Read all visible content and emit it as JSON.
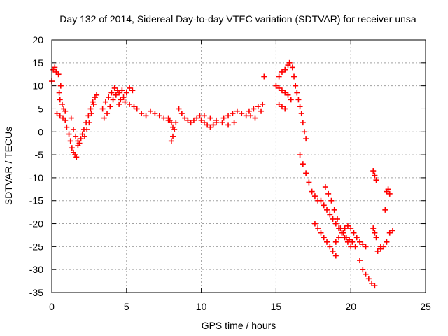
{
  "chart_data": {
    "type": "scatter",
    "title": "Day 132 of 2014, Sidereal Day-to-day VTEC variation (SDTVAR) for receiver unsa",
    "xlabel": "GPS time / hours",
    "ylabel": "SDTVAR / TECUs",
    "xlim": [
      0,
      25
    ],
    "ylim": [
      -35,
      20
    ],
    "xticks": [
      0,
      5,
      10,
      15,
      20,
      25
    ],
    "yticks": [
      -35,
      -30,
      -25,
      -20,
      -15,
      -10,
      -5,
      0,
      5,
      10,
      15,
      20
    ],
    "grid": true,
    "marker": "+",
    "series_color": "#ff0000",
    "series": [
      {
        "name": "SDTVAR",
        "x": [
          0.0,
          0.1,
          0.2,
          0.3,
          0.45,
          0.6,
          0.5,
          0.55,
          0.7,
          0.8,
          0.9,
          0.35,
          0.55,
          0.75,
          0.9,
          1.0,
          1.15,
          1.25,
          1.35,
          1.45,
          1.55,
          1.65,
          1.75,
          1.85,
          1.3,
          1.45,
          1.6,
          1.75,
          1.85,
          1.95,
          2.05,
          2.15,
          2.3,
          2.45,
          2.6,
          2.75,
          2.9,
          3.0,
          2.2,
          2.35,
          2.5,
          2.65,
          2.8,
          3.4,
          3.6,
          3.8,
          4.0,
          4.2,
          4.4,
          3.5,
          3.7,
          3.9,
          4.1,
          4.3,
          4.5,
          4.7,
          4.5,
          4.8,
          5.0,
          5.2,
          5.4,
          4.6,
          4.9,
          5.2,
          5.5,
          5.7,
          6.0,
          6.3,
          6.6,
          6.9,
          7.2,
          7.5,
          7.8,
          8.0,
          8.1,
          8.2,
          8.3,
          7.8,
          7.9,
          8.0,
          8.1,
          8.5,
          8.7,
          8.9,
          9.1,
          9.3,
          9.5,
          9.7,
          9.9,
          10.0,
          10.2,
          10.4,
          10.6,
          10.8,
          11.0,
          10.2,
          10.6,
          11.0,
          11.4,
          11.8,
          12.2,
          11.5,
          11.8,
          12.1,
          12.4,
          12.7,
          13.0,
          13.3,
          13.6,
          13.2,
          13.5,
          13.8,
          14.1,
          14.0,
          14.2,
          15.2,
          15.4,
          15.6,
          15.8,
          15.9,
          15.0,
          15.2,
          15.4,
          15.6,
          15.8,
          16.0,
          15.2,
          15.4,
          15.6,
          16.1,
          16.2,
          16.3,
          16.4,
          16.5,
          16.6,
          16.7,
          16.8,
          16.9,
          17.0,
          16.6,
          16.8,
          17.0,
          17.2,
          17.4,
          17.6,
          17.8,
          17.6,
          17.8,
          18.0,
          18.2,
          18.4,
          18.6,
          18.8,
          19.0,
          18.0,
          18.2,
          18.4,
          18.6,
          18.8,
          19.0,
          19.2,
          19.4,
          19.6,
          19.8,
          20.0,
          18.3,
          18.5,
          18.7,
          18.9,
          19.1,
          19.3,
          19.5,
          19.7,
          19.9,
          20.1,
          20.3,
          19.0,
          19.2,
          19.4,
          19.6,
          19.8,
          20.0,
          20.2,
          20.4,
          20.6,
          20.8,
          21.0,
          20.6,
          20.8,
          21.0,
          21.2,
          21.4,
          21.6,
          21.8,
          22.0,
          21.5,
          21.6,
          21.7,
          21.5,
          21.6,
          21.7,
          22.0,
          22.2,
          22.4,
          22.6,
          22.8,
          22.4,
          22.5,
          22.6,
          22.3
        ],
        "y": [
          11.0,
          13.5,
          14.0,
          13.0,
          12.5,
          10.0,
          8.5,
          7.0,
          6.0,
          5.0,
          4.5,
          4.0,
          3.5,
          3.0,
          2.5,
          1.0,
          -0.5,
          -2.0,
          -3.5,
          -4.5,
          -5.0,
          -5.5,
          -3.0,
          -2.5,
          3.0,
          0.5,
          -1.0,
          -2.0,
          -2.5,
          -1.5,
          -0.5,
          0.5,
          2.0,
          3.5,
          5.0,
          6.5,
          7.5,
          8.0,
          -1.0,
          0.5,
          2.0,
          4.0,
          6.0,
          5.0,
          6.5,
          7.5,
          8.5,
          9.5,
          9.0,
          3.0,
          4.0,
          5.5,
          7.0,
          8.0,
          8.5,
          9.0,
          6.0,
          7.5,
          8.5,
          9.5,
          9.0,
          7.0,
          6.5,
          6.0,
          5.5,
          5.0,
          4.0,
          3.5,
          4.5,
          4.0,
          3.5,
          3.0,
          2.5,
          -2.0,
          -1.0,
          0.5,
          2.0,
          3.0,
          2.5,
          2.0,
          1.0,
          5.0,
          4.0,
          3.0,
          2.5,
          2.0,
          2.5,
          3.0,
          3.5,
          2.5,
          2.0,
          1.5,
          1.0,
          1.5,
          2.0,
          3.5,
          3.0,
          2.5,
          2.0,
          1.5,
          2.0,
          3.0,
          3.5,
          4.0,
          4.5,
          4.0,
          3.5,
          3.5,
          3.0,
          4.5,
          5.0,
          5.5,
          6.0,
          4.5,
          12.0,
          12.0,
          13.0,
          13.5,
          14.5,
          15.0,
          10.0,
          9.5,
          9.0,
          8.5,
          8.0,
          7.0,
          6.0,
          5.5,
          5.0,
          14.0,
          12.0,
          10.0,
          8.5,
          7.0,
          5.5,
          4.0,
          2.0,
          0.0,
          -1.5,
          -5.0,
          -7.0,
          -9.0,
          -11.0,
          -13.0,
          -14.0,
          -15.0,
          -20.0,
          -21.0,
          -22.0,
          -23.0,
          -24.0,
          -25.0,
          -26.0,
          -27.0,
          -15.0,
          -16.0,
          -17.0,
          -18.0,
          -19.0,
          -20.0,
          -21.0,
          -22.0,
          -23.0,
          -24.0,
          -25.0,
          -12.0,
          -13.5,
          -15.0,
          -17.0,
          -19.0,
          -21.0,
          -22.0,
          -23.0,
          -23.5,
          -24.0,
          -25.0,
          -24.0,
          -23.0,
          -22.0,
          -21.0,
          -20.5,
          -21.0,
          -22.0,
          -23.0,
          -24.0,
          -24.5,
          -25.0,
          -28.0,
          -30.0,
          -31.0,
          -32.0,
          -33.0,
          -33.5,
          -26.0,
          -25.0,
          -8.5,
          -9.5,
          -10.5,
          -21.0,
          -22.0,
          -23.0,
          -25.5,
          -25.0,
          -24.0,
          -22.0,
          -21.5,
          -13.0,
          -12.5,
          -13.5,
          -17.0
        ]
      }
    ]
  }
}
